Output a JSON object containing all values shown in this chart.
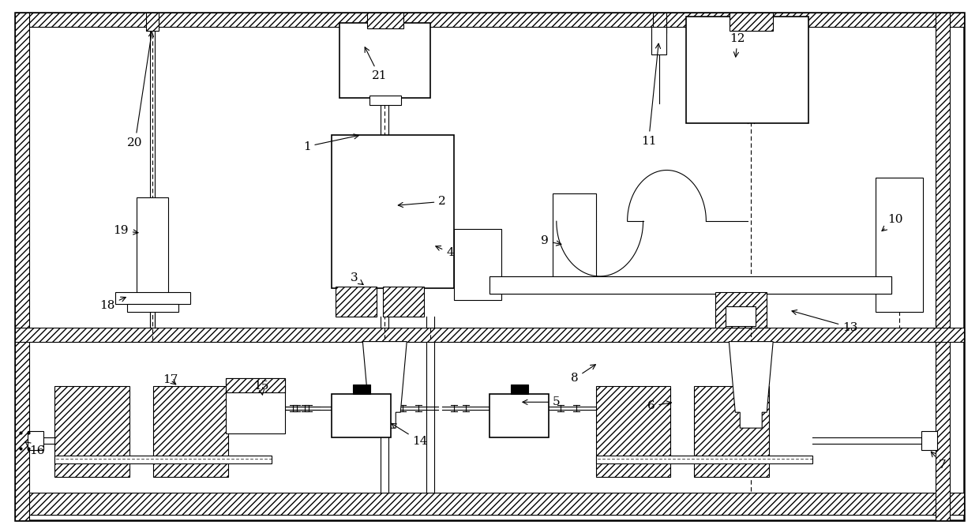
{
  "bg_color": "#ffffff",
  "line_color": "#000000",
  "fig_width": 12.4,
  "fig_height": 6.7,
  "dpi": 100
}
